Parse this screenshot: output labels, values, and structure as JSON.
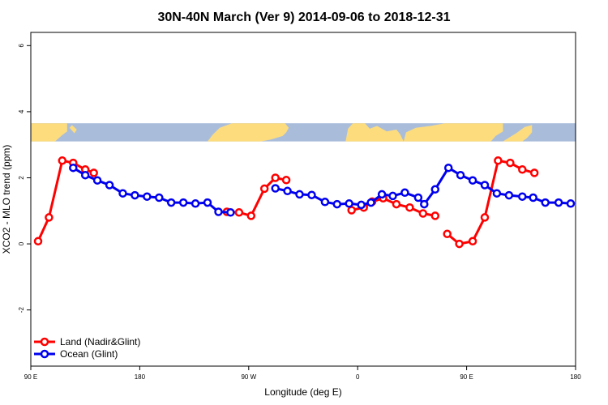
{
  "chart_data": {
    "type": "line",
    "title": "30N-40N March (Ver 9)   2014-09-06 to 2018-12-31",
    "xlabel": "Longitude (deg E)",
    "ylabel": "XCO2 - MLO trend (ppm)",
    "xlim": [
      90,
      540
    ],
    "ylim": [
      -3.7,
      6.4
    ],
    "x_ticks": [
      {
        "value": 90,
        "label": "90 E"
      },
      {
        "value": 180,
        "label": "180"
      },
      {
        "value": 270,
        "label": "90 W"
      },
      {
        "value": 360,
        "label": "0"
      },
      {
        "value": 450,
        "label": "90 E"
      },
      {
        "value": 540,
        "label": "180"
      }
    ],
    "y_ticks": [
      {
        "value": -2,
        "label": "-2"
      },
      {
        "value": 0,
        "label": "0"
      },
      {
        "value": 2,
        "label": "2"
      },
      {
        "value": 4,
        "label": "4"
      },
      {
        "value": 6,
        "label": "6"
      }
    ],
    "legend_position": "bottom-left",
    "map_strip": {
      "y_range": [
        3.1,
        3.65
      ],
      "ocean_color": "#a9bddb",
      "land_color": "#fddc7e"
    },
    "series": [
      {
        "name": "Land (Nadir&Glint)",
        "color": "#ff0000",
        "segments": [
          {
            "x": [
              96,
              105,
              116,
              125,
              135,
              142
            ],
            "y": [
              0.08,
              0.8,
              2.52,
              2.45,
              2.25,
              2.15
            ]
          },
          {
            "x": [
              252,
              262,
              272,
              283,
              292,
              301
            ],
            "y": [
              0.97,
              0.95,
              0.85,
              1.67,
              2.0,
              1.93
            ]
          },
          {
            "x": [
              355,
              365,
              372,
              381,
              392,
              403,
              414,
              424
            ],
            "y": [
              1.02,
              1.1,
              1.28,
              1.38,
              1.2,
              1.1,
              0.92,
              0.85
            ]
          },
          {
            "x": [
              434,
              444,
              455,
              465,
              476,
              486,
              496,
              506
            ],
            "y": [
              0.3,
              0.0,
              0.08,
              0.8,
              2.52,
              2.45,
              2.25,
              2.15
            ]
          }
        ]
      },
      {
        "name": "Ocean (Glint)",
        "color": "#0000ee",
        "segments": [
          {
            "x": [
              125,
              135,
              145,
              155,
              166,
              176,
              186,
              196,
              206,
              216,
              226,
              236,
              245,
              255
            ],
            "y": [
              2.3,
              2.08,
              1.92,
              1.78,
              1.53,
              1.47,
              1.43,
              1.4,
              1.25,
              1.25,
              1.22,
              1.25,
              0.97,
              0.95
            ]
          },
          {
            "x": [
              292,
              302,
              312,
              322,
              333,
              343,
              353,
              363,
              371,
              380,
              389,
              399,
              410,
              415,
              424,
              435,
              445,
              455,
              465,
              475,
              485,
              496,
              505,
              515,
              526,
              536
            ],
            "y": [
              1.68,
              1.6,
              1.5,
              1.48,
              1.27,
              1.2,
              1.22,
              1.18,
              1.25,
              1.5,
              1.45,
              1.55,
              1.4,
              1.2,
              1.65,
              2.3,
              2.08,
              1.92,
              1.78,
              1.53,
              1.47,
              1.43,
              1.4,
              1.25,
              1.25,
              1.22
            ]
          }
        ]
      }
    ]
  }
}
